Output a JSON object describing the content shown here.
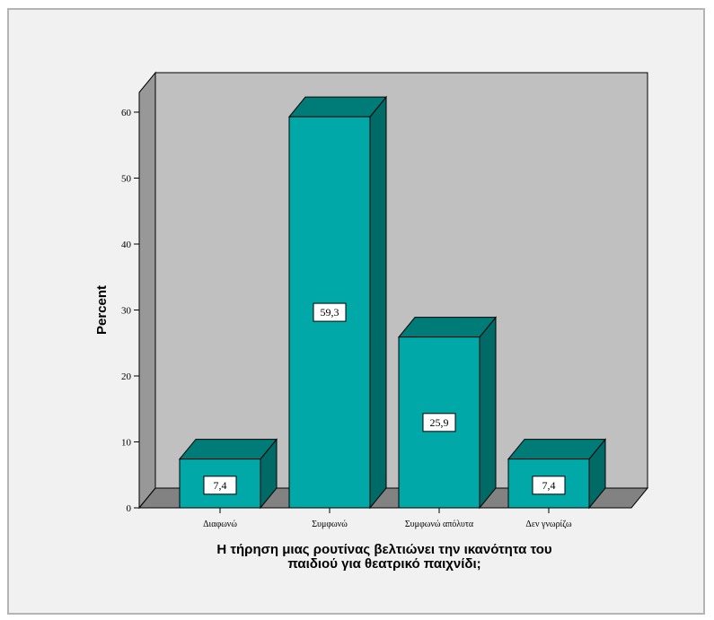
{
  "chart_data": {
    "type": "bar",
    "categories": [
      "Διαφωνώ",
      "Συμφωνώ",
      "Συμφωνώ απόλυτα",
      "Δεν γνωρίζω"
    ],
    "values": [
      7.4,
      59.3,
      25.9,
      7.4
    ],
    "data_labels": [
      "7,4",
      "59,3",
      "25,9",
      "7,4"
    ],
    "yticks": [
      0,
      10,
      20,
      30,
      40,
      50,
      60
    ],
    "ylim": [
      0,
      60
    ],
    "ylabel": "Percent",
    "xlabel_lines": [
      "Η τήρηση μιας ρουτίνας βελτιώνει την ικανότητα του",
      "παιδιού για θεατρικό παιχνίδι;"
    ],
    "grid": false,
    "style": "3d",
    "colors": {
      "bar_front": "#00a8a8",
      "bar_side": "#006a66",
      "bar_top": "#007c78",
      "wall": "#c0c0c0",
      "wall_side": "#989898",
      "floor": "#828282"
    }
  }
}
